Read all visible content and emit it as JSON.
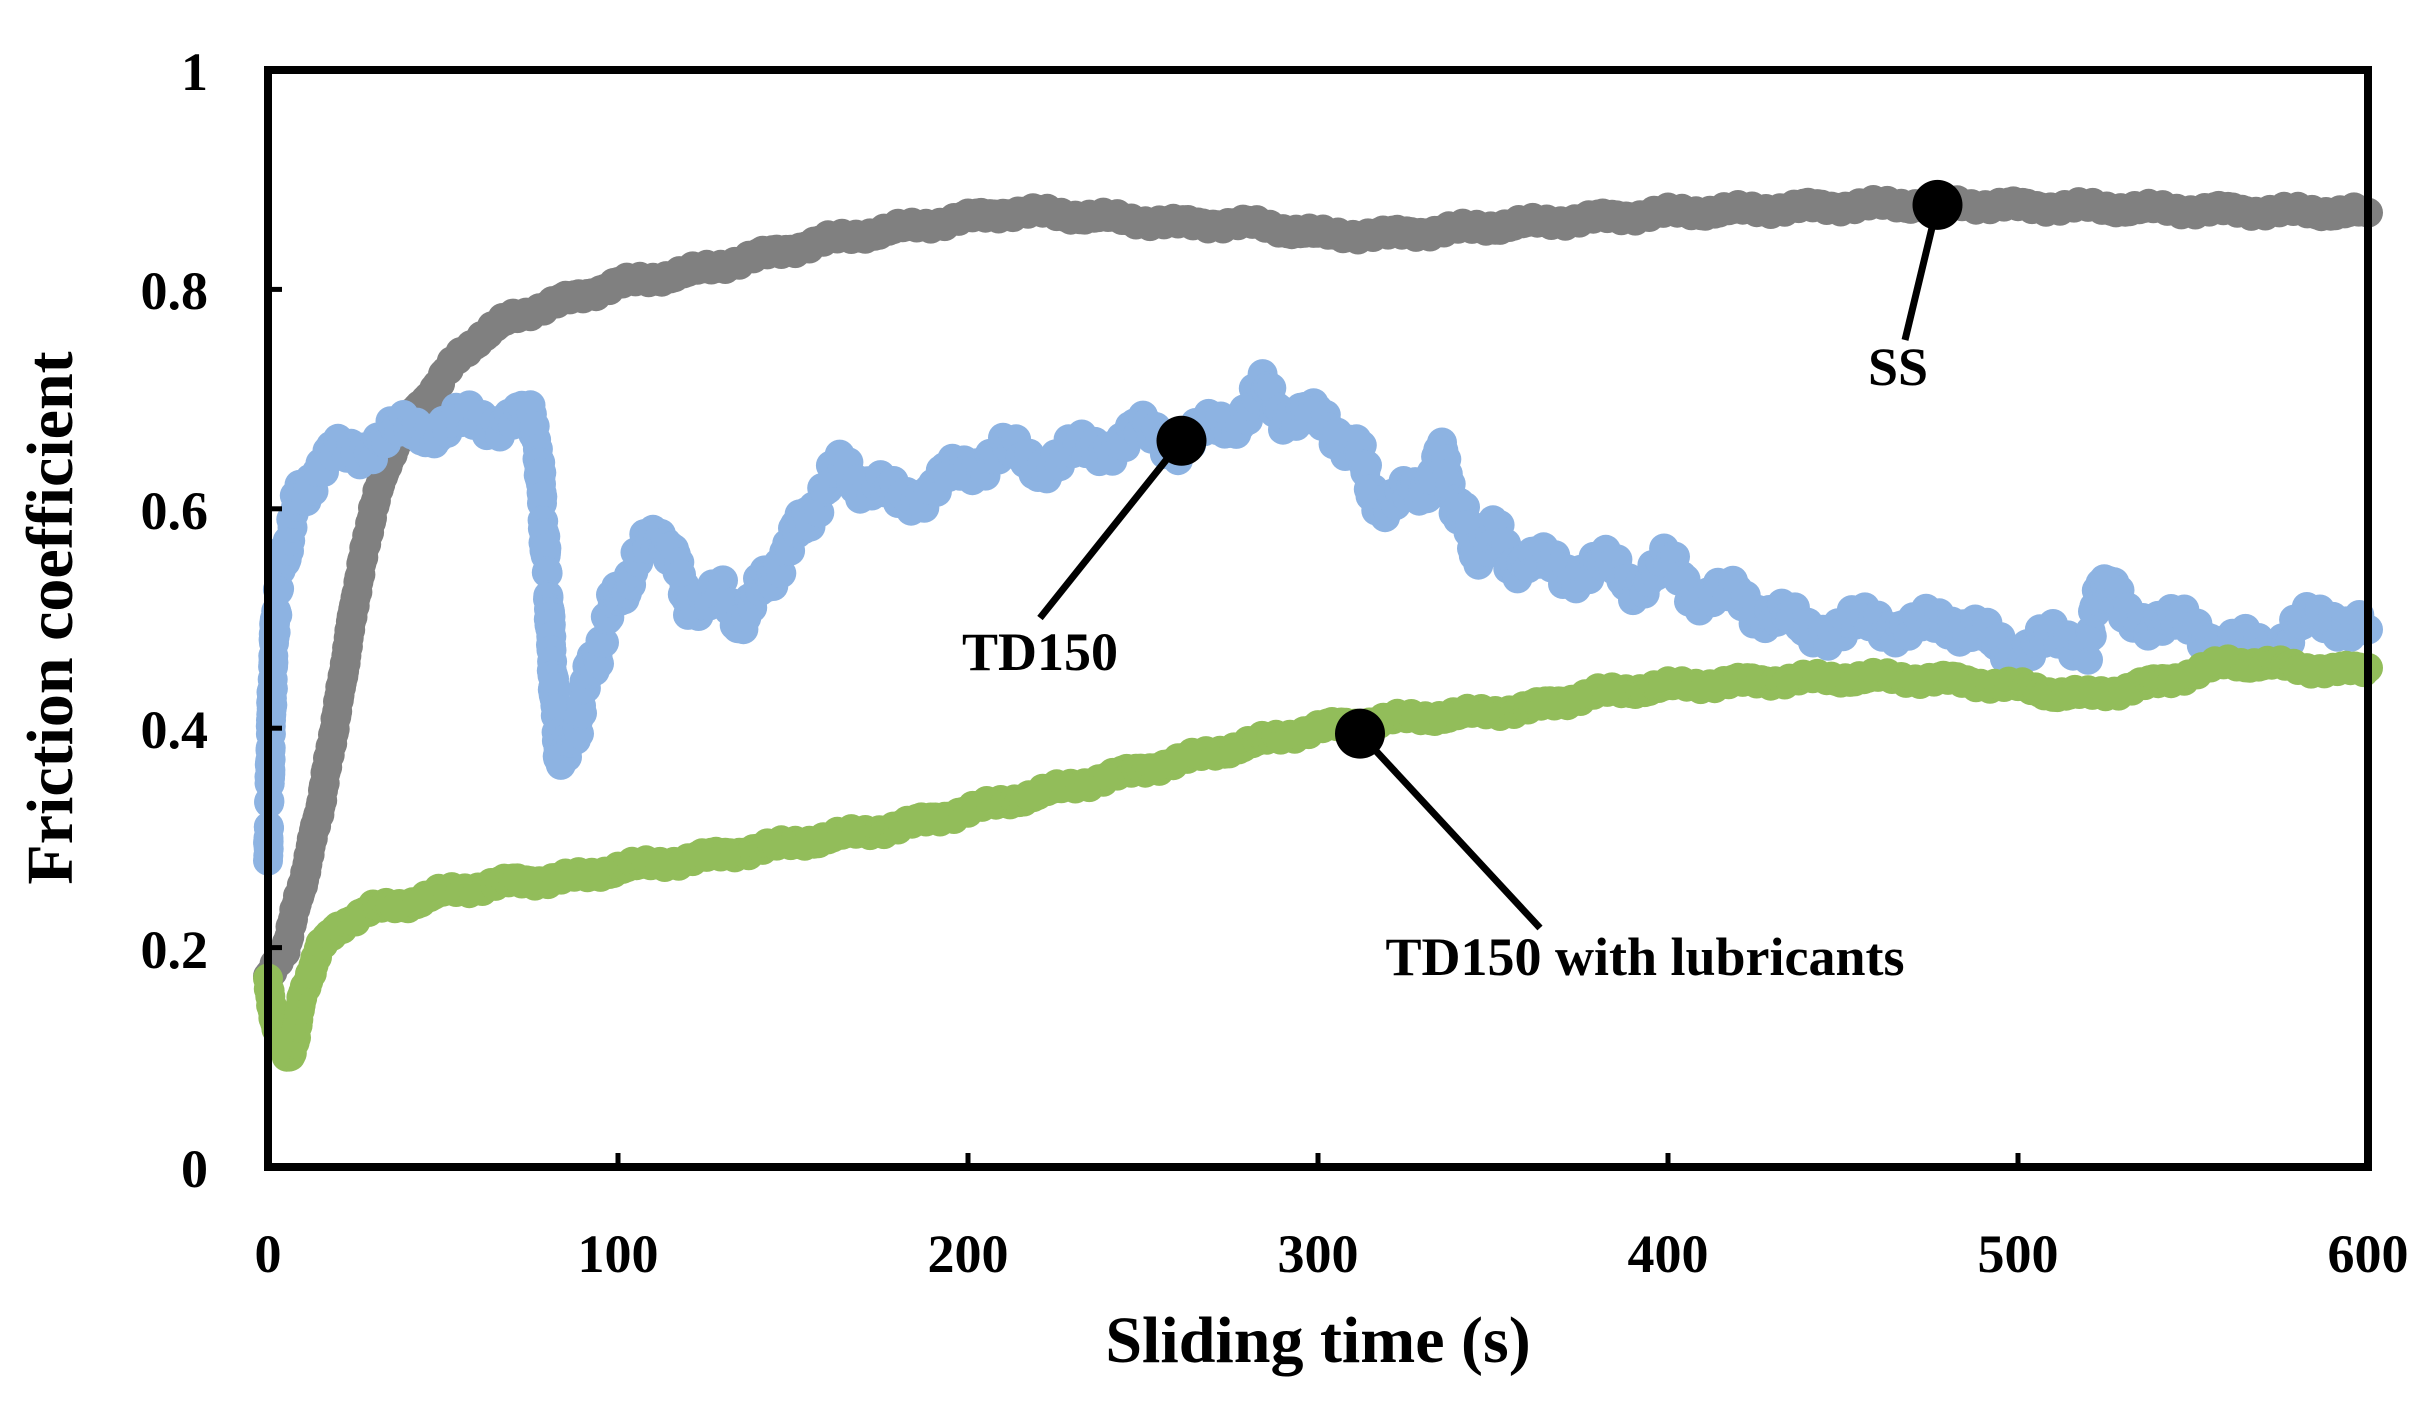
{
  "chart_data": {
    "type": "scatter",
    "title": "",
    "xlabel": "Sliding time (s)",
    "ylabel": "Friction coefficient",
    "xlim": [
      0,
      600
    ],
    "ylim": [
      0,
      1
    ],
    "xticks": [
      0,
      100,
      200,
      300,
      400,
      500,
      600
    ],
    "yticks": [
      0,
      0.2,
      0.4,
      0.6,
      0.8,
      1
    ],
    "xtick_labels": [
      "0",
      "100",
      "200",
      "300",
      "400",
      "500",
      "600"
    ],
    "ytick_labels": [
      "0",
      "0.2",
      "0.4",
      "0.6",
      "0.8",
      "1"
    ],
    "grid": false,
    "legend": "none",
    "series": [
      {
        "name": "SS",
        "color": "#808080",
        "points": [
          [
            0,
            0.17
          ],
          [
            5,
            0.2
          ],
          [
            10,
            0.26
          ],
          [
            15,
            0.33
          ],
          [
            20,
            0.42
          ],
          [
            25,
            0.52
          ],
          [
            30,
            0.6
          ],
          [
            35,
            0.65
          ],
          [
            40,
            0.68
          ],
          [
            45,
            0.7
          ],
          [
            50,
            0.72
          ],
          [
            55,
            0.74
          ],
          [
            60,
            0.755
          ],
          [
            65,
            0.765
          ],
          [
            70,
            0.775
          ],
          [
            75,
            0.78
          ],
          [
            80,
            0.785
          ],
          [
            90,
            0.795
          ],
          [
            100,
            0.805
          ],
          [
            110,
            0.81
          ],
          [
            120,
            0.815
          ],
          [
            140,
            0.83
          ],
          [
            160,
            0.845
          ],
          [
            180,
            0.855
          ],
          [
            200,
            0.865
          ],
          [
            210,
            0.87
          ],
          [
            220,
            0.87
          ],
          [
            240,
            0.865
          ],
          [
            260,
            0.86
          ],
          [
            280,
            0.86
          ],
          [
            290,
            0.855
          ],
          [
            300,
            0.85
          ],
          [
            320,
            0.85
          ],
          [
            340,
            0.855
          ],
          [
            360,
            0.86
          ],
          [
            380,
            0.865
          ],
          [
            400,
            0.87
          ],
          [
            420,
            0.872
          ],
          [
            440,
            0.875
          ],
          [
            460,
            0.877
          ],
          [
            480,
            0.878
          ],
          [
            500,
            0.876
          ],
          [
            520,
            0.875
          ],
          [
            540,
            0.873
          ],
          [
            560,
            0.872
          ],
          [
            580,
            0.871
          ],
          [
            600,
            0.87
          ]
        ]
      },
      {
        "name": "TD150",
        "color": "#8DB3E2",
        "points": [
          [
            0,
            0.28
          ],
          [
            1,
            0.42
          ],
          [
            2,
            0.5
          ],
          [
            4,
            0.55
          ],
          [
            8,
            0.6
          ],
          [
            12,
            0.63
          ],
          [
            20,
            0.65
          ],
          [
            30,
            0.66
          ],
          [
            40,
            0.67
          ],
          [
            50,
            0.675
          ],
          [
            60,
            0.68
          ],
          [
            70,
            0.685
          ],
          [
            75,
            0.68
          ],
          [
            77,
            0.66
          ],
          [
            78,
            0.62
          ],
          [
            79,
            0.57
          ],
          [
            80,
            0.53
          ],
          [
            81,
            0.47
          ],
          [
            82,
            0.42
          ],
          [
            83,
            0.38
          ],
          [
            85,
            0.37
          ],
          [
            88,
            0.4
          ],
          [
            90,
            0.43
          ],
          [
            95,
            0.48
          ],
          [
            100,
            0.52
          ],
          [
            105,
            0.55
          ],
          [
            110,
            0.57
          ],
          [
            113,
            0.58
          ],
          [
            116,
            0.55
          ],
          [
            120,
            0.52
          ],
          [
            125,
            0.51
          ],
          [
            130,
            0.52
          ],
          [
            135,
            0.5
          ],
          [
            140,
            0.52
          ],
          [
            145,
            0.55
          ],
          [
            150,
            0.57
          ],
          [
            155,
            0.6
          ],
          [
            160,
            0.62
          ],
          [
            165,
            0.64
          ],
          [
            170,
            0.62
          ],
          [
            180,
            0.61
          ],
          [
            190,
            0.62
          ],
          [
            200,
            0.64
          ],
          [
            210,
            0.65
          ],
          [
            220,
            0.64
          ],
          [
            230,
            0.65
          ],
          [
            240,
            0.66
          ],
          [
            250,
            0.67
          ],
          [
            260,
            0.66
          ],
          [
            270,
            0.67
          ],
          [
            280,
            0.69
          ],
          [
            285,
            0.71
          ],
          [
            290,
            0.69
          ],
          [
            300,
            0.68
          ],
          [
            310,
            0.66
          ],
          [
            315,
            0.62
          ],
          [
            320,
            0.6
          ],
          [
            330,
            0.62
          ],
          [
            335,
            0.65
          ],
          [
            340,
            0.6
          ],
          [
            345,
            0.56
          ],
          [
            350,
            0.58
          ],
          [
            355,
            0.55
          ],
          [
            360,
            0.56
          ],
          [
            370,
            0.54
          ],
          [
            380,
            0.55
          ],
          [
            390,
            0.53
          ],
          [
            400,
            0.55
          ],
          [
            410,
            0.52
          ],
          [
            420,
            0.52
          ],
          [
            430,
            0.5
          ],
          [
            440,
            0.49
          ],
          [
            450,
            0.49
          ],
          [
            460,
            0.5
          ],
          [
            470,
            0.49
          ],
          [
            480,
            0.5
          ],
          [
            490,
            0.48
          ],
          [
            500,
            0.47
          ],
          [
            510,
            0.48
          ],
          [
            520,
            0.48
          ],
          [
            525,
            0.54
          ],
          [
            530,
            0.5
          ],
          [
            540,
            0.5
          ],
          [
            550,
            0.49
          ],
          [
            560,
            0.48
          ],
          [
            570,
            0.47
          ],
          [
            580,
            0.49
          ],
          [
            590,
            0.5
          ],
          [
            600,
            0.49
          ]
        ]
      },
      {
        "name": "TD150 with lubricants",
        "color": "#92BD5A",
        "points": [
          [
            0,
            0.17
          ],
          [
            2,
            0.13
          ],
          [
            4,
            0.11
          ],
          [
            6,
            0.1
          ],
          [
            8,
            0.12
          ],
          [
            10,
            0.16
          ],
          [
            15,
            0.2
          ],
          [
            20,
            0.22
          ],
          [
            30,
            0.235
          ],
          [
            40,
            0.24
          ],
          [
            50,
            0.25
          ],
          [
            60,
            0.255
          ],
          [
            70,
            0.26
          ],
          [
            80,
            0.262
          ],
          [
            90,
            0.265
          ],
          [
            100,
            0.272
          ],
          [
            120,
            0.28
          ],
          [
            140,
            0.29
          ],
          [
            160,
            0.3
          ],
          [
            180,
            0.31
          ],
          [
            200,
            0.325
          ],
          [
            220,
            0.34
          ],
          [
            240,
            0.355
          ],
          [
            260,
            0.37
          ],
          [
            280,
            0.385
          ],
          [
            300,
            0.4
          ],
          [
            320,
            0.408
          ],
          [
            340,
            0.412
          ],
          [
            360,
            0.418
          ],
          [
            370,
            0.425
          ],
          [
            380,
            0.432
          ],
          [
            400,
            0.438
          ],
          [
            420,
            0.442
          ],
          [
            440,
            0.445
          ],
          [
            460,
            0.446
          ],
          [
            480,
            0.444
          ],
          [
            500,
            0.438
          ],
          [
            510,
            0.432
          ],
          [
            520,
            0.43
          ],
          [
            530,
            0.435
          ],
          [
            540,
            0.442
          ],
          [
            550,
            0.45
          ],
          [
            560,
            0.46
          ],
          [
            570,
            0.458
          ],
          [
            580,
            0.456
          ],
          [
            590,
            0.452
          ],
          [
            600,
            0.455
          ]
        ]
      }
    ],
    "annotations": [
      {
        "label": "SS",
        "series": "SS",
        "point": [
          477,
          0.877
        ]
      },
      {
        "label": "TD150",
        "series": "TD150",
        "point": [
          261,
          0.662
        ]
      },
      {
        "label": "TD150 with lubricants",
        "series": "TD150 with lubricants",
        "point": [
          312,
          0.395
        ]
      }
    ]
  }
}
